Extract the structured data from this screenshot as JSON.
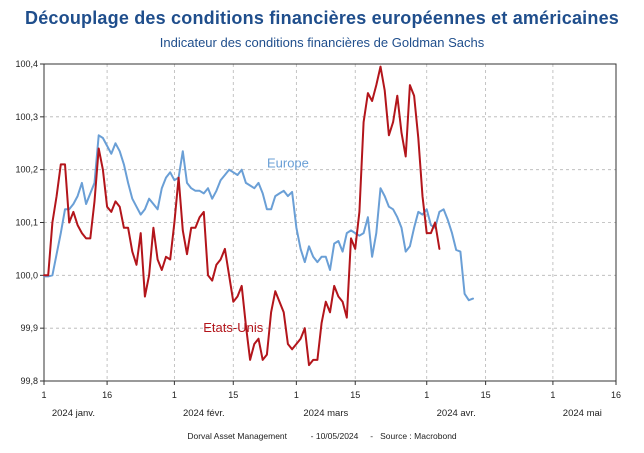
{
  "header": {
    "title": "Découplage des conditions financières européennes et américaines",
    "subtitle": "Indicateur des conditions financières de Goldman Sachs"
  },
  "footer": {
    "source": "Dorval Asset Management",
    "date": "- 10/05/2024",
    "data_source": "-   Source : Macrobond"
  },
  "colors": {
    "europe": "#6a9fd6",
    "usa": "#b3151b",
    "title": "#1f4e8c",
    "grid": "#b5b5b5"
  },
  "chart_data": {
    "type": "line",
    "title": "Découplage des conditions financières européennes et américaines",
    "subtitle": "Indicateur des conditions financières de Goldman Sachs",
    "ylim": [
      99.8,
      100.4
    ],
    "y_ticks": [
      99.8,
      99.9,
      100.0,
      100.1,
      100.2,
      100.3,
      100.4
    ],
    "y_tick_labels": [
      "99,8",
      "99,9",
      "100,0",
      "100,1",
      "100,2",
      "100,3",
      "100,4"
    ],
    "x_range": [
      "2024-01-01",
      "2024-05-16"
    ],
    "x_ticks": [
      {
        "label": "1",
        "date": "2024-01-01"
      },
      {
        "label": "16",
        "date": "2024-01-16"
      },
      {
        "label": "1",
        "date": "2024-02-01"
      },
      {
        "label": "15",
        "date": "2024-02-15"
      },
      {
        "label": "1",
        "date": "2024-03-01"
      },
      {
        "label": "15",
        "date": "2024-03-15"
      },
      {
        "label": "1",
        "date": "2024-04-01"
      },
      {
        "label": "15",
        "date": "2024-04-15"
      },
      {
        "label": "1",
        "date": "2024-05-01"
      },
      {
        "label": "16",
        "date": "2024-05-16"
      }
    ],
    "month_labels": [
      {
        "label": "2024 janv.",
        "date": "2024-01-08"
      },
      {
        "label": "2024 févr.",
        "date": "2024-02-08"
      },
      {
        "label": "2024 mars",
        "date": "2024-03-08"
      },
      {
        "label": "2024 avr.",
        "date": "2024-04-08"
      },
      {
        "label": "2024 mai",
        "date": "2024-05-08"
      }
    ],
    "series": [
      {
        "name": "Europe",
        "label_anchor": {
          "date": "2024-02-28",
          "value": 100.204
        },
        "points": [
          [
            "2024-01-01",
            99.998
          ],
          [
            "2024-01-02",
            99.998
          ],
          [
            "2024-01-03",
            100.0
          ],
          [
            "2024-01-04",
            100.04
          ],
          [
            "2024-01-05",
            100.08
          ],
          [
            "2024-01-06",
            100.125
          ],
          [
            "2024-01-07",
            100.125
          ],
          [
            "2024-01-08",
            100.135
          ],
          [
            "2024-01-09",
            100.15
          ],
          [
            "2024-01-10",
            100.175
          ],
          [
            "2024-01-11",
            100.135
          ],
          [
            "2024-01-12",
            100.155
          ],
          [
            "2024-01-13",
            100.175
          ],
          [
            "2024-01-14",
            100.265
          ],
          [
            "2024-01-15",
            100.26
          ],
          [
            "2024-01-16",
            100.245
          ],
          [
            "2024-01-17",
            100.23
          ],
          [
            "2024-01-18",
            100.25
          ],
          [
            "2024-01-19",
            100.235
          ],
          [
            "2024-01-20",
            100.21
          ],
          [
            "2024-01-21",
            100.175
          ],
          [
            "2024-01-22",
            100.145
          ],
          [
            "2024-01-23",
            100.13
          ],
          [
            "2024-01-24",
            100.115
          ],
          [
            "2024-01-25",
            100.125
          ],
          [
            "2024-01-26",
            100.145
          ],
          [
            "2024-01-27",
            100.135
          ],
          [
            "2024-01-28",
            100.125
          ],
          [
            "2024-01-29",
            100.165
          ],
          [
            "2024-01-30",
            100.185
          ],
          [
            "2024-01-31",
            100.195
          ],
          [
            "2024-02-01",
            100.18
          ],
          [
            "2024-02-02",
            100.185
          ],
          [
            "2024-02-03",
            100.235
          ],
          [
            "2024-02-04",
            100.175
          ],
          [
            "2024-02-05",
            100.165
          ],
          [
            "2024-02-06",
            100.16
          ],
          [
            "2024-02-07",
            100.16
          ],
          [
            "2024-02-08",
            100.155
          ],
          [
            "2024-02-09",
            100.165
          ],
          [
            "2024-02-10",
            100.145
          ],
          [
            "2024-02-11",
            100.16
          ],
          [
            "2024-02-12",
            100.18
          ],
          [
            "2024-02-13",
            100.19
          ],
          [
            "2024-02-14",
            100.2
          ],
          [
            "2024-02-15",
            100.195
          ],
          [
            "2024-02-16",
            100.19
          ],
          [
            "2024-02-17",
            100.2
          ],
          [
            "2024-02-18",
            100.175
          ],
          [
            "2024-02-19",
            100.17
          ],
          [
            "2024-02-20",
            100.165
          ],
          [
            "2024-02-21",
            100.175
          ],
          [
            "2024-02-22",
            100.155
          ],
          [
            "2024-02-23",
            100.125
          ],
          [
            "2024-02-24",
            100.125
          ],
          [
            "2024-02-25",
            100.15
          ],
          [
            "2024-02-26",
            100.155
          ],
          [
            "2024-02-27",
            100.16
          ],
          [
            "2024-02-28",
            100.15
          ],
          [
            "2024-02-29",
            100.158
          ],
          [
            "2024-03-01",
            100.09
          ],
          [
            "2024-03-02",
            100.05
          ],
          [
            "2024-03-03",
            100.025
          ],
          [
            "2024-03-04",
            100.055
          ],
          [
            "2024-03-05",
            100.035
          ],
          [
            "2024-03-06",
            100.025
          ],
          [
            "2024-03-07",
            100.035
          ],
          [
            "2024-03-08",
            100.035
          ],
          [
            "2024-03-09",
            100.01
          ],
          [
            "2024-03-10",
            100.06
          ],
          [
            "2024-03-11",
            100.065
          ],
          [
            "2024-03-12",
            100.045
          ],
          [
            "2024-03-13",
            100.08
          ],
          [
            "2024-03-14",
            100.085
          ],
          [
            "2024-03-15",
            100.08
          ],
          [
            "2024-03-16",
            100.075
          ],
          [
            "2024-03-17",
            100.08
          ],
          [
            "2024-03-18",
            100.11
          ],
          [
            "2024-03-19",
            100.035
          ],
          [
            "2024-03-20",
            100.08
          ],
          [
            "2024-03-21",
            100.165
          ],
          [
            "2024-03-22",
            100.15
          ],
          [
            "2024-03-23",
            100.13
          ],
          [
            "2024-03-24",
            100.125
          ],
          [
            "2024-03-25",
            100.11
          ],
          [
            "2024-03-26",
            100.09
          ],
          [
            "2024-03-27",
            100.045
          ],
          [
            "2024-03-28",
            100.055
          ],
          [
            "2024-03-29",
            100.09
          ],
          [
            "2024-03-30",
            100.12
          ],
          [
            "2024-03-31",
            100.115
          ],
          [
            "2024-04-01",
            100.125
          ],
          [
            "2024-04-02",
            100.095
          ],
          [
            "2024-04-03",
            100.09
          ],
          [
            "2024-04-04",
            100.12
          ],
          [
            "2024-04-05",
            100.125
          ],
          [
            "2024-04-06",
            100.105
          ],
          [
            "2024-04-07",
            100.08
          ],
          [
            "2024-04-08",
            100.048
          ],
          [
            "2024-04-09",
            100.045
          ],
          [
            "2024-04-10",
            99.965
          ],
          [
            "2024-04-11",
            99.953
          ],
          [
            "2024-04-12",
            99.956
          ]
        ]
      },
      {
        "name": "Etats-Unis",
        "label_anchor": {
          "date": "2024-02-15",
          "value": 99.893
        },
        "points": [
          [
            "2024-01-01",
            100.0
          ],
          [
            "2024-01-02",
            100.0
          ],
          [
            "2024-01-03",
            100.1
          ],
          [
            "2024-01-04",
            100.15
          ],
          [
            "2024-01-05",
            100.21
          ],
          [
            "2024-01-06",
            100.21
          ],
          [
            "2024-01-07",
            100.1
          ],
          [
            "2024-01-08",
            100.12
          ],
          [
            "2024-01-09",
            100.095
          ],
          [
            "2024-01-10",
            100.08
          ],
          [
            "2024-01-11",
            100.07
          ],
          [
            "2024-01-12",
            100.07
          ],
          [
            "2024-01-13",
            100.14
          ],
          [
            "2024-01-14",
            100.24
          ],
          [
            "2024-01-15",
            100.2
          ],
          [
            "2024-01-16",
            100.13
          ],
          [
            "2024-01-17",
            100.12
          ],
          [
            "2024-01-18",
            100.14
          ],
          [
            "2024-01-19",
            100.13
          ],
          [
            "2024-01-20",
            100.09
          ],
          [
            "2024-01-21",
            100.09
          ],
          [
            "2024-01-22",
            100.045
          ],
          [
            "2024-01-23",
            100.02
          ],
          [
            "2024-01-24",
            100.08
          ],
          [
            "2024-01-25",
            99.96
          ],
          [
            "2024-01-26",
            100.0
          ],
          [
            "2024-01-27",
            100.09
          ],
          [
            "2024-01-28",
            100.03
          ],
          [
            "2024-01-29",
            100.01
          ],
          [
            "2024-01-30",
            100.035
          ],
          [
            "2024-01-31",
            100.03
          ],
          [
            "2024-02-01",
            100.1
          ],
          [
            "2024-02-02",
            100.185
          ],
          [
            "2024-02-03",
            100.085
          ],
          [
            "2024-02-04",
            100.04
          ],
          [
            "2024-02-05",
            100.09
          ],
          [
            "2024-02-06",
            100.09
          ],
          [
            "2024-02-07",
            100.11
          ],
          [
            "2024-02-08",
            100.12
          ],
          [
            "2024-02-09",
            100.0
          ],
          [
            "2024-02-10",
            99.99
          ],
          [
            "2024-02-11",
            100.02
          ],
          [
            "2024-02-12",
            100.03
          ],
          [
            "2024-02-13",
            100.05
          ],
          [
            "2024-02-14",
            100.0
          ],
          [
            "2024-02-15",
            99.95
          ],
          [
            "2024-02-16",
            99.96
          ],
          [
            "2024-02-17",
            99.98
          ],
          [
            "2024-02-18",
            99.905
          ],
          [
            "2024-02-19",
            99.84
          ],
          [
            "2024-02-20",
            99.87
          ],
          [
            "2024-02-21",
            99.88
          ],
          [
            "2024-02-22",
            99.84
          ],
          [
            "2024-02-23",
            99.85
          ],
          [
            "2024-02-24",
            99.93
          ],
          [
            "2024-02-25",
            99.97
          ],
          [
            "2024-02-26",
            99.95
          ],
          [
            "2024-02-27",
            99.93
          ],
          [
            "2024-02-28",
            99.87
          ],
          [
            "2024-02-29",
            99.86
          ],
          [
            "2024-03-01",
            99.87
          ],
          [
            "2024-03-02",
            99.88
          ],
          [
            "2024-03-03",
            99.9
          ],
          [
            "2024-03-04",
            99.83
          ],
          [
            "2024-03-05",
            99.84
          ],
          [
            "2024-03-06",
            99.84
          ],
          [
            "2024-03-07",
            99.91
          ],
          [
            "2024-03-08",
            99.95
          ],
          [
            "2024-03-09",
            99.93
          ],
          [
            "2024-03-10",
            99.98
          ],
          [
            "2024-03-11",
            99.96
          ],
          [
            "2024-03-12",
            99.95
          ],
          [
            "2024-03-13",
            99.92
          ],
          [
            "2024-03-14",
            100.07
          ],
          [
            "2024-03-15",
            100.05
          ],
          [
            "2024-03-16",
            100.12
          ],
          [
            "2024-03-17",
            100.29
          ],
          [
            "2024-03-18",
            100.345
          ],
          [
            "2024-03-19",
            100.33
          ],
          [
            "2024-03-20",
            100.36
          ],
          [
            "2024-03-21",
            100.395
          ],
          [
            "2024-03-22",
            100.35
          ],
          [
            "2024-03-23",
            100.265
          ],
          [
            "2024-03-24",
            100.29
          ],
          [
            "2024-03-25",
            100.34
          ],
          [
            "2024-03-26",
            100.27
          ],
          [
            "2024-03-27",
            100.225
          ],
          [
            "2024-03-28",
            100.36
          ],
          [
            "2024-03-29",
            100.34
          ],
          [
            "2024-03-30",
            100.26
          ],
          [
            "2024-03-31",
            100.15
          ],
          [
            "2024-04-01",
            100.08
          ],
          [
            "2024-04-02",
            100.08
          ],
          [
            "2024-04-03",
            100.1
          ],
          [
            "2024-04-04",
            100.05
          ]
        ]
      }
    ]
  }
}
